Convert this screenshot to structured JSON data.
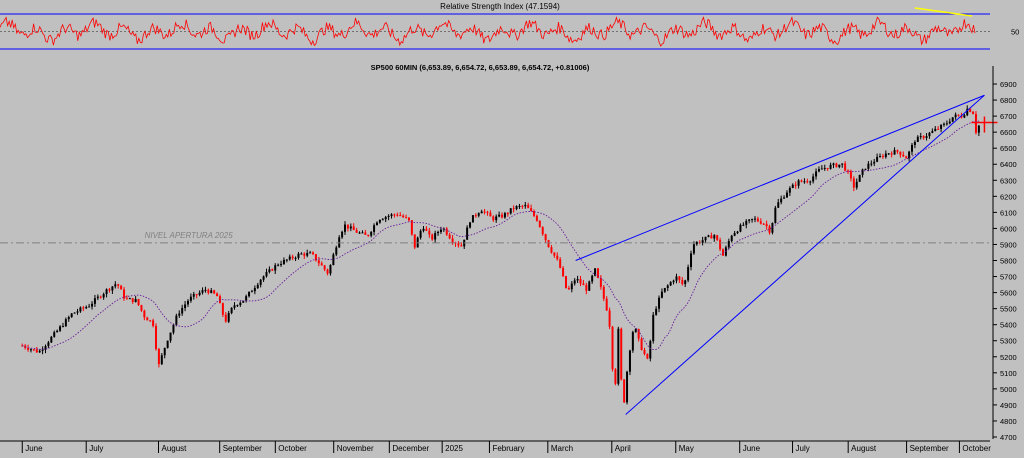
{
  "chart_data": [
    {
      "type": "line",
      "title": "Relative Strength Index (47.1594)",
      "indicator": "RSI",
      "last_value": 47.1594,
      "ylim": [
        20,
        80
      ],
      "levels": [
        70,
        50,
        30
      ],
      "ytick_labels": [
        "50"
      ],
      "line_color": "#ff0000",
      "level_color": "#0000ff",
      "midline_color": "#555555",
      "trendline_color": "#ffff00",
      "grid": false
    },
    {
      "type": "candlestick",
      "title": "SP500 60MIN (6,653.89, 6,654.72, 6,653.89, 6,654.72, +0.81006)",
      "interval": "60MIN",
      "last_bar": {
        "open": 6653.89,
        "high": 6654.72,
        "low": 6653.89,
        "close": 6654.72,
        "change": 0.81006
      },
      "ylim": [
        4700,
        6950
      ],
      "yticks": [
        4700,
        4800,
        4900,
        5000,
        5100,
        5200,
        5300,
        5400,
        5500,
        5600,
        5700,
        5800,
        5900,
        6000,
        6100,
        6200,
        6300,
        6400,
        6500,
        6600,
        6700,
        6800,
        6900
      ],
      "months": [
        "June",
        "July",
        "August",
        "September",
        "October",
        "November",
        "December",
        "2025",
        "February",
        "March",
        "April",
        "May",
        "June",
        "July",
        "August",
        "September",
        "October"
      ],
      "month_index": [
        0,
        1.15,
        2.45,
        3.55,
        4.55,
        5.6,
        6.6,
        7.55,
        8.4,
        9.45,
        10.6,
        11.75,
        12.9,
        13.85,
        14.85,
        15.9,
        16.85
      ],
      "x_range": [
        -0.4,
        17.4
      ],
      "path": [
        [
          0,
          5270
        ],
        [
          0.3,
          5230
        ],
        [
          0.6,
          5350
        ],
        [
          0.9,
          5470
        ],
        [
          1.2,
          5520
        ],
        [
          1.5,
          5610
        ],
        [
          1.7,
          5660
        ],
        [
          1.85,
          5560
        ],
        [
          2.05,
          5550
        ],
        [
          2.2,
          5450
        ],
        [
          2.35,
          5410
        ],
        [
          2.45,
          5140
        ],
        [
          2.6,
          5300
        ],
        [
          2.8,
          5470
        ],
        [
          3.0,
          5560
        ],
        [
          3.3,
          5620
        ],
        [
          3.5,
          5580
        ],
        [
          3.65,
          5420
        ],
        [
          3.8,
          5520
        ],
        [
          4.0,
          5560
        ],
        [
          4.3,
          5690
        ],
        [
          4.6,
          5780
        ],
        [
          4.8,
          5810
        ],
        [
          5.0,
          5840
        ],
        [
          5.2,
          5840
        ],
        [
          5.4,
          5760
        ],
        [
          5.5,
          5720
        ],
        [
          5.6,
          5840
        ],
        [
          5.7,
          5960
        ],
        [
          5.8,
          6020
        ],
        [
          6.0,
          5980
        ],
        [
          6.2,
          5950
        ],
        [
          6.4,
          6060
        ],
        [
          6.6,
          6080
        ],
        [
          6.75,
          6090
        ],
        [
          6.95,
          6050
        ],
        [
          7.05,
          5880
        ],
        [
          7.2,
          6020
        ],
        [
          7.35,
          5930
        ],
        [
          7.55,
          6010
        ],
        [
          7.75,
          5920
        ],
        [
          7.9,
          5890
        ],
        [
          8.05,
          6050
        ],
        [
          8.25,
          6120
        ],
        [
          8.45,
          6060
        ],
        [
          8.65,
          6080
        ],
        [
          8.85,
          6130
        ],
        [
          9.05,
          6140
        ],
        [
          9.25,
          6060
        ],
        [
          9.45,
          5900
        ],
        [
          9.65,
          5780
        ],
        [
          9.8,
          5600
        ],
        [
          9.95,
          5690
        ],
        [
          10.15,
          5620
        ],
        [
          10.3,
          5740
        ],
        [
          10.4,
          5630
        ],
        [
          10.55,
          5450
        ],
        [
          10.65,
          4950
        ],
        [
          10.72,
          5380
        ],
        [
          10.8,
          4850
        ],
        [
          10.9,
          5200
        ],
        [
          11.0,
          5400
        ],
        [
          11.1,
          5280
        ],
        [
          11.25,
          5170
        ],
        [
          11.35,
          5470
        ],
        [
          11.5,
          5600
        ],
        [
          11.65,
          5660
        ],
        [
          11.75,
          5700
        ],
        [
          11.9,
          5640
        ],
        [
          12.05,
          5900
        ],
        [
          12.25,
          5930
        ],
        [
          12.45,
          5960
        ],
        [
          12.6,
          5830
        ],
        [
          12.75,
          5960
        ],
        [
          12.95,
          6020
        ],
        [
          13.15,
          6060
        ],
        [
          13.35,
          6030
        ],
        [
          13.45,
          5980
        ],
        [
          13.55,
          6140
        ],
        [
          13.75,
          6230
        ],
        [
          13.95,
          6290
        ],
        [
          14.15,
          6300
        ],
        [
          14.35,
          6370
        ],
        [
          14.55,
          6390
        ],
        [
          14.75,
          6400
        ],
        [
          14.85,
          6340
        ],
        [
          14.95,
          6260
        ],
        [
          15.15,
          6380
        ],
        [
          15.35,
          6430
        ],
        [
          15.55,
          6470
        ],
        [
          15.75,
          6480
        ],
        [
          15.9,
          6440
        ],
        [
          16.05,
          6550
        ],
        [
          16.25,
          6580
        ],
        [
          16.45,
          6620
        ],
        [
          16.6,
          6650
        ],
        [
          16.75,
          6700
        ],
        [
          16.9,
          6700
        ],
        [
          17.0,
          6750
        ],
        [
          17.1,
          6720
        ],
        [
          17.15,
          6600
        ],
        [
          17.2,
          6640
        ]
      ],
      "moving_average_color": "#6a1b9a",
      "up_color": "#000000",
      "down_color": "#ff0000",
      "annotations": [
        {
          "type": "label",
          "text": "NIVEL APERTURA 2025",
          "x": 2.2,
          "y": 5940
        },
        {
          "type": "hline",
          "y": 5910,
          "style": "dashdot",
          "color": "#808080"
        },
        {
          "type": "trendline",
          "x": [
            10.85,
            17.3
          ],
          "y": [
            4840,
            6830
          ],
          "color": "#0000ff"
        },
        {
          "type": "trendline",
          "x": [
            9.95,
            17.3
          ],
          "y": [
            5800,
            6830
          ],
          "color": "#0000ff"
        },
        {
          "type": "cross_marker",
          "x": 17.3,
          "y": 6660,
          "color": "#ff0000"
        }
      ],
      "grid": false
    }
  ]
}
